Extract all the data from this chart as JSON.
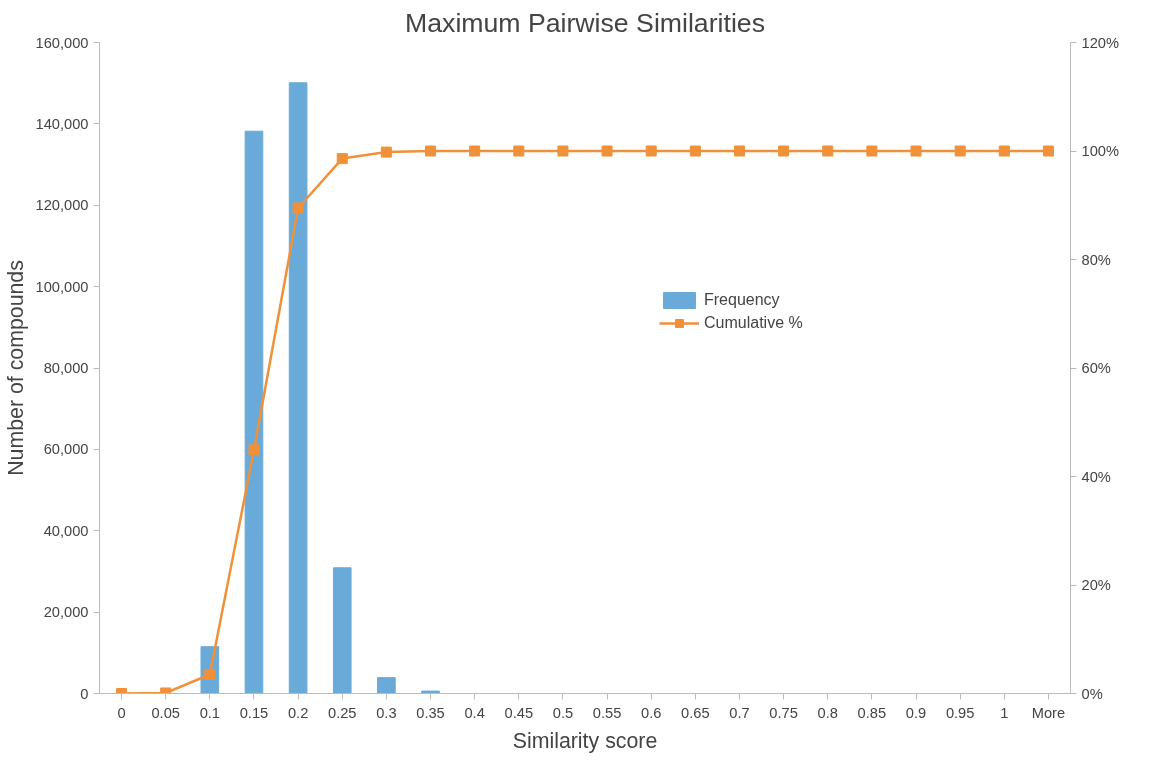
{
  "chart_data": {
    "type": "bar",
    "title": "Maximum Pairwise Similarities",
    "xlabel": "Similarity score",
    "ylabel": "Number of compounds",
    "categories": [
      "0",
      "0.05",
      "0.1",
      "0.15",
      "0.2",
      "0.25",
      "0.3",
      "0.35",
      "0.4",
      "0.45",
      "0.5",
      "0.55",
      "0.6",
      "0.65",
      "0.7",
      "0.75",
      "0.8",
      "0.85",
      "0.9",
      "0.95",
      "1",
      "More"
    ],
    "series": [
      {
        "name": "Frequency",
        "color": "#6aaad8",
        "values": [
          0,
          0,
          11500,
          138200,
          150100,
          30900,
          3900,
          600,
          0,
          0,
          0,
          0,
          0,
          0,
          0,
          0,
          0,
          0,
          0,
          0,
          0,
          0
        ]
      },
      {
        "name": "Cumulative %",
        "type": "line",
        "axis": "y2",
        "color": "#f0913a",
        "marker": "square",
        "values": [
          0,
          0.1,
          3.5,
          44.9,
          89.5,
          98.6,
          99.8,
          100,
          100,
          100,
          100,
          100,
          100,
          100,
          100,
          100,
          100,
          100,
          100,
          100,
          100,
          100
        ]
      }
    ],
    "ylim": [
      0,
      160000
    ],
    "yticks": [
      {
        "value": 0,
        "label": "0"
      },
      {
        "value": 20000,
        "label": "20,000"
      },
      {
        "value": 40000,
        "label": "40,000"
      },
      {
        "value": 60000,
        "label": "60,000"
      },
      {
        "value": 80000,
        "label": "80,000"
      },
      {
        "value": 100000,
        "label": "100,000"
      },
      {
        "value": 120000,
        "label": "120,000"
      },
      {
        "value": 140000,
        "label": "140,000"
      },
      {
        "value": 160000,
        "label": "160,000"
      }
    ],
    "y2lim": [
      0,
      120
    ],
    "y2ticks": [
      {
        "value": 0,
        "label": "0%"
      },
      {
        "value": 20,
        "label": "20%"
      },
      {
        "value": 40,
        "label": "40%"
      },
      {
        "value": 60,
        "label": "60%"
      },
      {
        "value": 80,
        "label": "80%"
      },
      {
        "value": 100,
        "label": "100%"
      },
      {
        "value": 120,
        "label": "120%"
      }
    ],
    "grid": false,
    "legend": "right"
  }
}
